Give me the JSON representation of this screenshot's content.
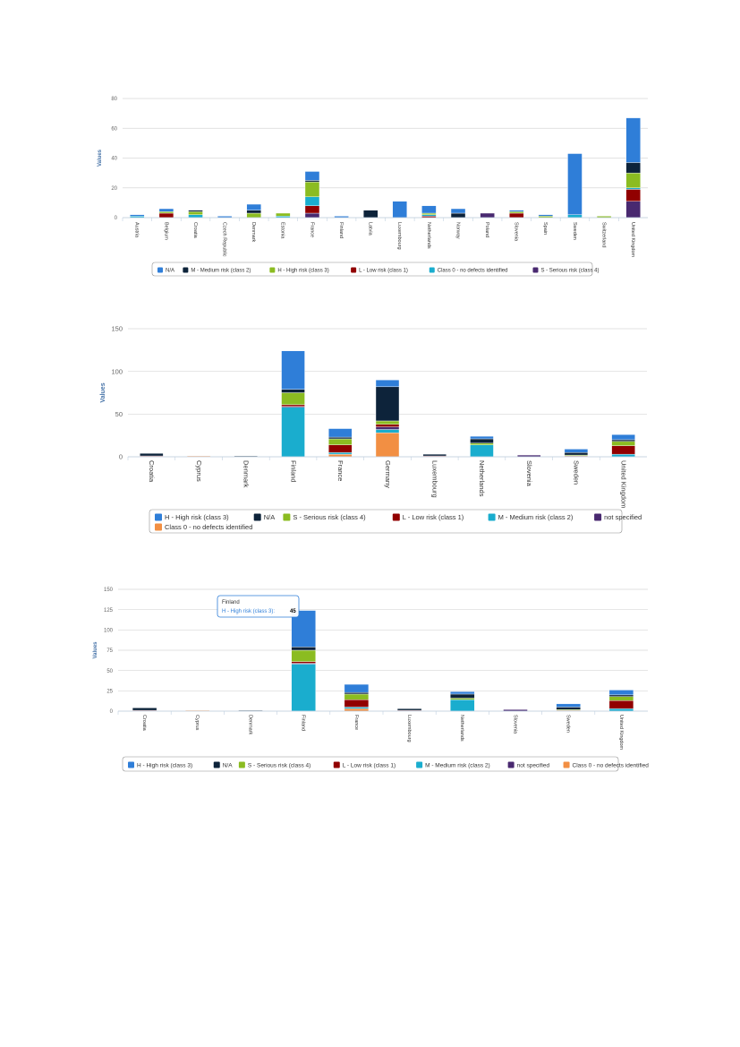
{
  "colors": {
    "N/A_blue": "#2f7ed8",
    "navy": "#0d233a",
    "green": "#8bbc21",
    "darkred": "#910000",
    "cyan": "#1aadce",
    "purple": "#492970",
    "orange": "#f28f43"
  },
  "chart_data": [
    {
      "type": "bar",
      "stacked": true,
      "ylabel": "Values",
      "ylim": [
        0,
        80
      ],
      "yticks": [
        "0",
        "20",
        "40",
        "60",
        "80"
      ],
      "categories": [
        "Austria",
        "Belgium",
        "Croatia",
        "Czech Republic",
        "Denmark",
        "Estonia",
        "France",
        "Finland",
        "Latvia",
        "Luxembourg",
        "Netherlands",
        "Norway",
        "Poland",
        "Slovenia",
        "Spain",
        "Sweden",
        "Switzerland",
        "United Kingdom"
      ],
      "series": [
        {
          "name": "S - Serious risk (class 4)",
          "color": "#492970",
          "values": [
            0,
            0,
            0,
            0,
            0,
            0,
            3,
            0,
            0,
            0,
            0,
            0,
            3,
            0,
            0,
            0,
            0,
            11
          ]
        },
        {
          "name": "L - Low risk (class 1)",
          "color": "#910000",
          "values": [
            0,
            3,
            0,
            0,
            0,
            0,
            5,
            0,
            0,
            0,
            1,
            0,
            0,
            3,
            0,
            0,
            0,
            8
          ]
        },
        {
          "name": "Class 0 - no defects identified",
          "color": "#1aadce",
          "values": [
            1,
            0,
            2,
            0,
            0,
            1,
            6,
            0,
            0,
            0,
            1,
            0,
            0,
            0,
            0,
            2,
            0,
            1
          ]
        },
        {
          "name": "H - High risk (class 3)",
          "color": "#8bbc21",
          "values": [
            0,
            1,
            2,
            0,
            3,
            2,
            10,
            0,
            0,
            0,
            1,
            0,
            0,
            1,
            1,
            0,
            1,
            10
          ]
        },
        {
          "name": "M - Medium risk (class 2)",
          "color": "#0d233a",
          "values": [
            0,
            0,
            1,
            0,
            2,
            0,
            1,
            0,
            5,
            0,
            0,
            3,
            0,
            0,
            0,
            0,
            0,
            7
          ]
        },
        {
          "name": "N/A",
          "color": "#2f7ed8",
          "values": [
            1,
            2,
            0,
            1,
            4,
            0,
            6,
            1,
            0,
            11,
            5,
            3,
            0,
            1,
            1,
            41,
            0,
            30
          ]
        }
      ],
      "legend": [
        "N/A",
        "M - Medium risk (class 2)",
        "H - High risk (class 3)",
        "L - Low risk (class 1)",
        "Class 0 - no defects identified",
        "S - Serious risk (class 4)"
      ]
    },
    {
      "type": "bar",
      "stacked": true,
      "ylabel": "Values",
      "ylim": [
        0,
        150
      ],
      "yticks": [
        "0",
        "50",
        "100",
        "150"
      ],
      "categories": [
        "Croatia",
        "Cyprus",
        "Denmark",
        "Finland",
        "France",
        "Germany",
        "Luxembourg",
        "Netherlands",
        "Slovenia",
        "Sweden",
        "United Kingdom"
      ],
      "series": [
        {
          "name": "Class 0 - no defects identified",
          "color": "#f28f43",
          "values": [
            0,
            1,
            0,
            0,
            3,
            28,
            0,
            0,
            0,
            0,
            0
          ]
        },
        {
          "name": "M - Medium risk (class 2)",
          "color": "#1aadce",
          "values": [
            0,
            0,
            0,
            58,
            2,
            4,
            0,
            14,
            0,
            0,
            3
          ]
        },
        {
          "name": "not specified",
          "color": "#492970",
          "values": [
            0,
            0,
            0,
            1,
            0,
            3,
            0,
            0,
            2,
            0,
            0
          ]
        },
        {
          "name": "L - Low risk (class 1)",
          "color": "#910000",
          "values": [
            1,
            0,
            0,
            2,
            9,
            3,
            1,
            0,
            0,
            1,
            10
          ]
        },
        {
          "name": "S - Serious risk (class 4)",
          "color": "#8bbc21",
          "values": [
            0,
            0,
            0,
            14,
            7,
            4,
            0,
            2,
            0,
            1,
            5
          ]
        },
        {
          "name": "N/A",
          "color": "#0d233a",
          "values": [
            3,
            0,
            1,
            4,
            2,
            40,
            2,
            5,
            0,
            3,
            2
          ]
        },
        {
          "name": "H - High risk (class 3)",
          "color": "#2f7ed8",
          "values": [
            0,
            0,
            0,
            45,
            10,
            8,
            0,
            3,
            0,
            4,
            6
          ]
        }
      ],
      "legend": [
        "H - High risk (class 3)",
        "N/A",
        "S - Serious risk (class 4)",
        "L - Low risk (class 1)",
        "M - Medium risk (class 2)",
        "not specified",
        "Class 0 - no defects identified"
      ]
    },
    {
      "type": "bar",
      "stacked": true,
      "ylabel": "Values",
      "ylim": [
        0,
        150
      ],
      "yticks": [
        "0",
        "25",
        "50",
        "75",
        "100",
        "125",
        "150"
      ],
      "categories": [
        "Croatia",
        "Cyprus",
        "Denmark",
        "Finland",
        "France",
        "Luxembourg",
        "Netherlands",
        "Slovenia",
        "Sweden",
        "United Kingdom"
      ],
      "series": [
        {
          "name": "Class 0 - no defects identified",
          "color": "#f28f43",
          "values": [
            0,
            1,
            0,
            0,
            3,
            0,
            0,
            0,
            0,
            0
          ]
        },
        {
          "name": "M - Medium risk (class 2)",
          "color": "#1aadce",
          "values": [
            0,
            0,
            0,
            58,
            2,
            0,
            14,
            0,
            0,
            3
          ]
        },
        {
          "name": "not specified",
          "color": "#492970",
          "values": [
            0,
            0,
            0,
            1,
            0,
            0,
            0,
            2,
            0,
            0
          ]
        },
        {
          "name": "L - Low risk (class 1)",
          "color": "#910000",
          "values": [
            1,
            0,
            0,
            2,
            9,
            1,
            0,
            0,
            1,
            10
          ]
        },
        {
          "name": "S - Serious risk (class 4)",
          "color": "#8bbc21",
          "values": [
            0,
            0,
            0,
            14,
            7,
            0,
            2,
            0,
            1,
            5
          ]
        },
        {
          "name": "N/A",
          "color": "#0d233a",
          "values": [
            3,
            0,
            1,
            4,
            2,
            2,
            5,
            0,
            3,
            2
          ]
        },
        {
          "name": "H - High risk (class 3)",
          "color": "#2f7ed8",
          "values": [
            0,
            0,
            0,
            45,
            10,
            0,
            3,
            0,
            4,
            6
          ]
        }
      ],
      "legend": [
        "H - High risk (class 3)",
        "N/A",
        "S - Serious risk (class 4)",
        "L - Low risk (class 1)",
        "M - Medium risk (class 2)",
        "not specified",
        "Class 0 - no defects identified"
      ],
      "tooltip": {
        "category": "Finland",
        "series": "H - High risk (class 3)",
        "value": "45"
      }
    }
  ]
}
